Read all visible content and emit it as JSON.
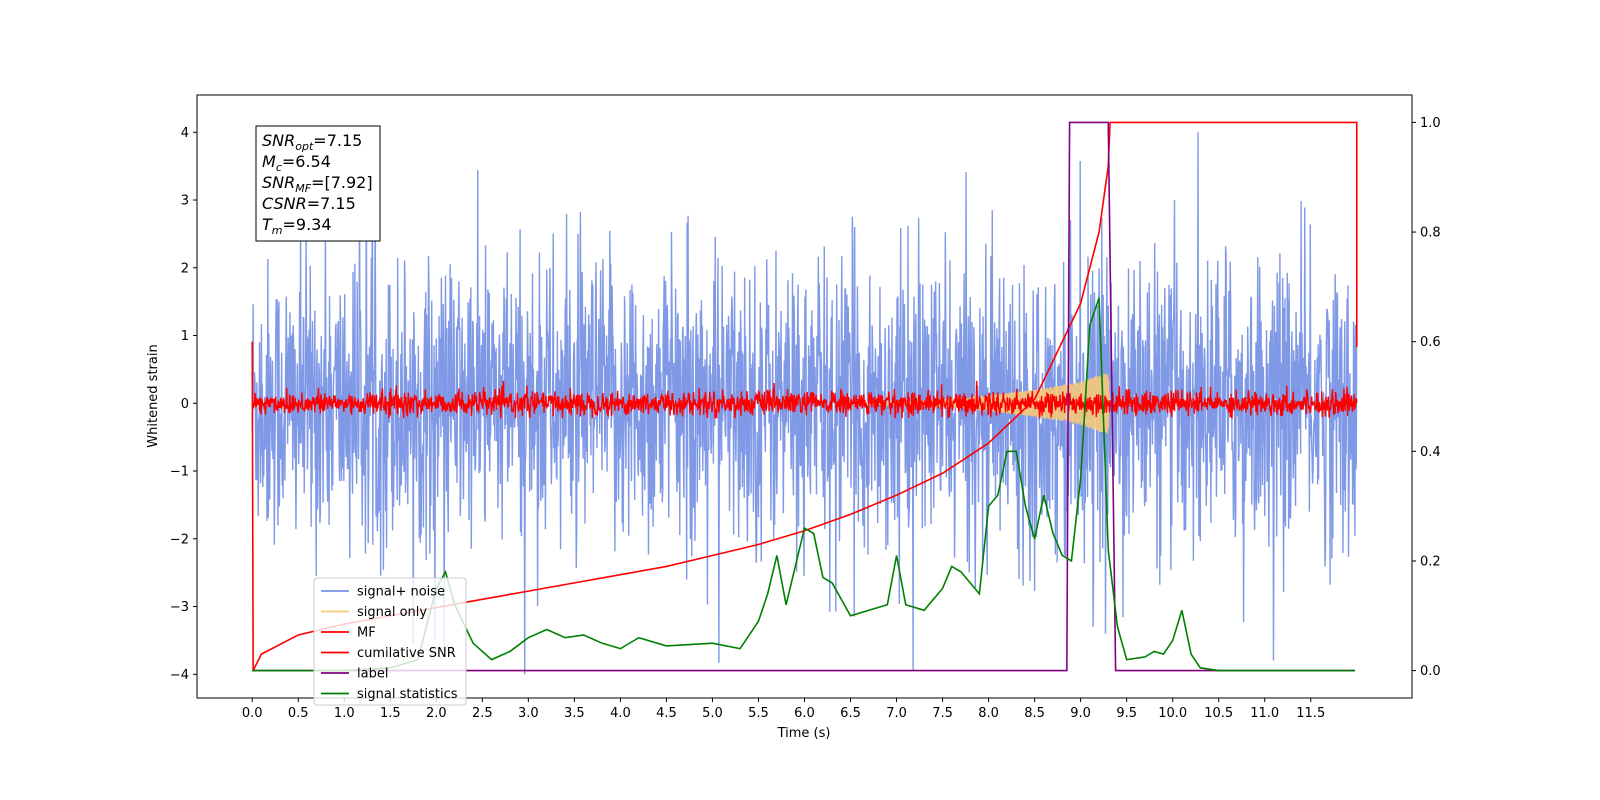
{
  "chart_data": {
    "type": "line",
    "xlabel": "Time (s)",
    "ylabel": "Whitened strain",
    "xlim": [
      -0.6,
      12.6
    ],
    "ylim": [
      -4.35,
      4.55
    ],
    "ylim_right": [
      -0.05,
      1.05
    ],
    "x_ticks": [
      "0.0",
      "0.5",
      "1.0",
      "1.5",
      "2.0",
      "2.5",
      "3.0",
      "3.5",
      "4.0",
      "4.5",
      "5.0",
      "5.5",
      "6.0",
      "6.5",
      "7.0",
      "7.5",
      "8.0",
      "8.5",
      "9.0",
      "9.5",
      "10.0",
      "10.5",
      "11.0",
      "11.5"
    ],
    "y_ticks_left": [
      "4",
      "3",
      "2",
      "1",
      "0",
      "−1",
      "−2",
      "−3",
      "−4"
    ],
    "y_ticks_right": [
      "1.0",
      "0.8",
      "0.6",
      "0.4",
      "0.2",
      "0.0"
    ],
    "annotation": [
      {
        "base": "SNR",
        "sub": "opt",
        "value": "=7.15"
      },
      {
        "base": "M",
        "sub": "c",
        "value": "=6.54"
      },
      {
        "base": "SNR",
        "sub": "MF",
        "value": "=[7.92]"
      },
      {
        "base": "CSNR",
        "sub": "",
        "value": "=7.15"
      },
      {
        "base": "T",
        "sub": "m",
        "value": "=9.34"
      }
    ],
    "legend": {
      "position": "lower-left",
      "entries": [
        {
          "label": "signal+ noise",
          "color": "#7893e6"
        },
        {
          "label": "signal only",
          "color": "#f5c97a"
        },
        {
          "label": "MF",
          "color": "#ff0000"
        },
        {
          "label": "cumilative SNR",
          "color": "#ff0000"
        },
        {
          "label": "label",
          "color": "#800080"
        },
        {
          "label": "signal statistics",
          "color": "#008000"
        }
      ]
    },
    "series": [
      {
        "name": "signal+ noise",
        "axis": "left",
        "color": "#7893e6",
        "description_values": {
          "x_start": 0.0,
          "x_end": 12.0,
          "typical_range": [
            -2.5,
            2.5
          ],
          "max": 4.0,
          "min": -4.0
        }
      },
      {
        "name": "signal only",
        "axis": "left",
        "color": "#f5c97a",
        "x": [
          0,
          7.0,
          7.5,
          8.0,
          8.5,
          9.0,
          9.2,
          9.3,
          9.32,
          12.0
        ],
        "amplitude": [
          0,
          0.02,
          0.06,
          0.12,
          0.2,
          0.32,
          0.42,
          0.45,
          0,
          0
        ]
      },
      {
        "name": "MF",
        "axis": "left",
        "color": "#ff0000",
        "description_values": {
          "x_start": 0.0,
          "x_end": 12.0,
          "typical_range": [
            -0.22,
            0.22
          ]
        }
      },
      {
        "name": "cumilative SNR",
        "axis": "right",
        "color": "#ff0000",
        "x": [
          0.0,
          0.01,
          0.1,
          0.5,
          1.0,
          1.5,
          2.0,
          2.5,
          3.0,
          3.5,
          4.0,
          4.5,
          5.0,
          5.5,
          6.0,
          6.5,
          7.0,
          7.5,
          8.0,
          8.5,
          9.0,
          9.2,
          9.3,
          9.32,
          12.0,
          12.0
        ],
        "y": [
          0.6,
          0.0,
          0.03,
          0.065,
          0.085,
          0.1,
          0.115,
          0.13,
          0.145,
          0.16,
          0.175,
          0.19,
          0.21,
          0.23,
          0.255,
          0.285,
          0.32,
          0.36,
          0.415,
          0.495,
          0.67,
          0.8,
          0.92,
          1.0,
          1.0,
          0.59
        ]
      },
      {
        "name": "label",
        "axis": "right",
        "color": "#800080",
        "x": [
          0.0,
          8.85,
          8.88,
          9.3,
          9.38,
          11.98
        ],
        "y": [
          0.0,
          0.0,
          1.0,
          1.0,
          0.0,
          0.0
        ]
      },
      {
        "name": "signal statistics",
        "axis": "right",
        "color": "#008000",
        "x": [
          0.0,
          0.5,
          1.0,
          1.5,
          1.8,
          2.0,
          2.1,
          2.2,
          2.4,
          2.6,
          2.8,
          3.0,
          3.2,
          3.4,
          3.6,
          3.8,
          4.0,
          4.2,
          4.5,
          5.0,
          5.3,
          5.5,
          5.6,
          5.7,
          5.8,
          5.9,
          6.0,
          6.1,
          6.2,
          6.3,
          6.5,
          6.7,
          6.9,
          7.0,
          7.1,
          7.3,
          7.5,
          7.6,
          7.7,
          7.9,
          8.0,
          8.1,
          8.2,
          8.3,
          8.4,
          8.5,
          8.6,
          8.7,
          8.8,
          8.9,
          9.0,
          9.1,
          9.2,
          9.3,
          9.4,
          9.5,
          9.7,
          9.8,
          9.9,
          10.0,
          10.1,
          10.2,
          10.3,
          10.5,
          11.0,
          11.5,
          11.98
        ],
        "y": [
          0.0,
          0.0,
          0.0,
          0.005,
          0.02,
          0.15,
          0.18,
          0.12,
          0.05,
          0.02,
          0.035,
          0.06,
          0.075,
          0.06,
          0.065,
          0.05,
          0.04,
          0.06,
          0.045,
          0.05,
          0.04,
          0.09,
          0.14,
          0.21,
          0.12,
          0.19,
          0.26,
          0.25,
          0.17,
          0.16,
          0.1,
          0.11,
          0.12,
          0.21,
          0.12,
          0.11,
          0.15,
          0.19,
          0.18,
          0.14,
          0.3,
          0.32,
          0.4,
          0.4,
          0.3,
          0.24,
          0.32,
          0.25,
          0.21,
          0.2,
          0.35,
          0.63,
          0.68,
          0.22,
          0.08,
          0.02,
          0.025,
          0.035,
          0.03,
          0.055,
          0.11,
          0.03,
          0.005,
          0.0,
          0.0,
          0.0,
          0.0
        ]
      }
    ]
  }
}
